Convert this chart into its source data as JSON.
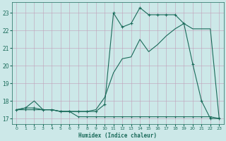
{
  "xlabel": "Humidex (Indice chaleur)",
  "xlim": [
    -0.5,
    23.5
  ],
  "ylim": [
    16.7,
    23.6
  ],
  "yticks": [
    17,
    18,
    19,
    20,
    21,
    22,
    23
  ],
  "xticks": [
    0,
    1,
    2,
    3,
    4,
    5,
    6,
    7,
    8,
    9,
    10,
    11,
    12,
    13,
    14,
    15,
    16,
    17,
    18,
    19,
    20,
    21,
    22,
    23
  ],
  "bg_color": "#cce8e8",
  "line_color": "#1a6b5a",
  "grid_color": "#c0a0b8",
  "series_main_x": [
    0,
    1,
    2,
    3,
    4,
    5,
    6,
    7,
    8,
    9,
    10,
    11,
    12,
    13,
    14,
    15,
    16,
    17,
    18,
    19,
    20,
    21,
    22,
    23
  ],
  "series_main_y": [
    17.5,
    17.6,
    17.6,
    17.5,
    17.5,
    17.4,
    17.4,
    17.4,
    17.4,
    17.4,
    17.8,
    23.0,
    22.2,
    22.4,
    23.3,
    22.9,
    22.9,
    22.9,
    22.9,
    22.4,
    20.1,
    18.0,
    17.0,
    17.0
  ],
  "series_flat_x": [
    0,
    1,
    2,
    3,
    4,
    5,
    6,
    7,
    8,
    9,
    10,
    11,
    12,
    13,
    14,
    15,
    16,
    17,
    18,
    19,
    20,
    21,
    22,
    23
  ],
  "series_flat_y": [
    17.5,
    17.5,
    17.5,
    17.5,
    17.5,
    17.4,
    17.4,
    17.1,
    17.1,
    17.1,
    17.1,
    17.1,
    17.1,
    17.1,
    17.1,
    17.1,
    17.1,
    17.1,
    17.1,
    17.1,
    17.1,
    17.1,
    17.1,
    17.0
  ],
  "series_trend_x": [
    0,
    1,
    2,
    3,
    4,
    5,
    6,
    7,
    8,
    9,
    10,
    11,
    12,
    13,
    14,
    15,
    16,
    17,
    18,
    19,
    20,
    21,
    22,
    23
  ],
  "series_trend_y": [
    17.5,
    17.6,
    18.0,
    17.5,
    17.5,
    17.4,
    17.4,
    17.4,
    17.4,
    17.5,
    18.2,
    19.6,
    20.4,
    20.5,
    21.5,
    20.8,
    21.2,
    21.7,
    22.1,
    22.4,
    22.1,
    22.1,
    22.1,
    17.0
  ]
}
